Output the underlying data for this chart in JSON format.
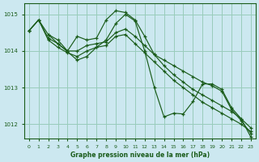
{
  "background_color": "#cce8f0",
  "plot_bg_color": "#cce8f0",
  "grid_color": "#99ccbb",
  "line_color": "#1a5c1a",
  "xlabel": "Graphe pression niveau de la mer (hPa)",
  "ylim": [
    1011.6,
    1015.3
  ],
  "xlim": [
    -0.5,
    23.5
  ],
  "yticks": [
    1012,
    1013,
    1014,
    1015
  ],
  "xticks": [
    0,
    1,
    2,
    3,
    4,
    5,
    6,
    7,
    8,
    9,
    10,
    11,
    12,
    13,
    14,
    15,
    16,
    17,
    18,
    19,
    20,
    21,
    22,
    23
  ],
  "series": [
    {
      "x": [
        0,
        1,
        2,
        3,
        4,
        5,
        6,
        7,
        8,
        9,
        10,
        11,
        12,
        13,
        14,
        15,
        16,
        17,
        18,
        19,
        20,
        21,
        22,
        23
      ],
      "y": [
        1014.55,
        1014.85,
        1014.45,
        1014.3,
        1014.0,
        1014.4,
        1014.3,
        1014.35,
        1014.85,
        1015.1,
        1015.05,
        1014.85,
        1014.4,
        1013.9,
        1013.75,
        1013.6,
        1013.45,
        1013.3,
        1013.15,
        1013.05,
        1012.9,
        1012.4,
        1012.1,
        1011.75
      ]
    },
    {
      "x": [
        0,
        1,
        2,
        3,
        4,
        5,
        6,
        7,
        8,
        9,
        10,
        11,
        12,
        13,
        14,
        15,
        16,
        17,
        18,
        19,
        20,
        21,
        22,
        23
      ],
      "y": [
        1014.55,
        1014.85,
        1014.35,
        1014.2,
        1014.0,
        1014.0,
        1014.15,
        1014.2,
        1014.25,
        1014.5,
        1014.6,
        1014.4,
        1014.15,
        1013.9,
        1013.6,
        1013.35,
        1013.15,
        1012.95,
        1012.8,
        1012.65,
        1012.5,
        1012.35,
        1012.15,
        1011.9
      ]
    },
    {
      "x": [
        0,
        1,
        2,
        3,
        4,
        5,
        6,
        7,
        8,
        9,
        10,
        11,
        12,
        13,
        14,
        15,
        16,
        17,
        18,
        19,
        20,
        21,
        22,
        23
      ],
      "y": [
        1014.55,
        1014.85,
        1014.3,
        1014.1,
        1013.95,
        1013.85,
        1014.0,
        1014.1,
        1014.15,
        1014.4,
        1014.45,
        1014.2,
        1013.95,
        1013.7,
        1013.45,
        1013.2,
        1013.0,
        1012.8,
        1012.6,
        1012.45,
        1012.3,
        1012.15,
        1012.0,
        1011.8
      ]
    },
    {
      "x": [
        2,
        3,
        4,
        5,
        6,
        7,
        8,
        9,
        10,
        11,
        12,
        13,
        14,
        15,
        16,
        17,
        18,
        19,
        20,
        21,
        22,
        23
      ],
      "y": [
        1014.45,
        1014.2,
        1013.98,
        1013.75,
        1013.85,
        1014.1,
        1014.3,
        1014.75,
        1015.0,
        1014.82,
        1014.0,
        1013.0,
        1012.2,
        1012.3,
        1012.28,
        1012.62,
        1013.1,
        1013.1,
        1012.95,
        1012.45,
        1012.15,
        1011.65
      ]
    }
  ]
}
